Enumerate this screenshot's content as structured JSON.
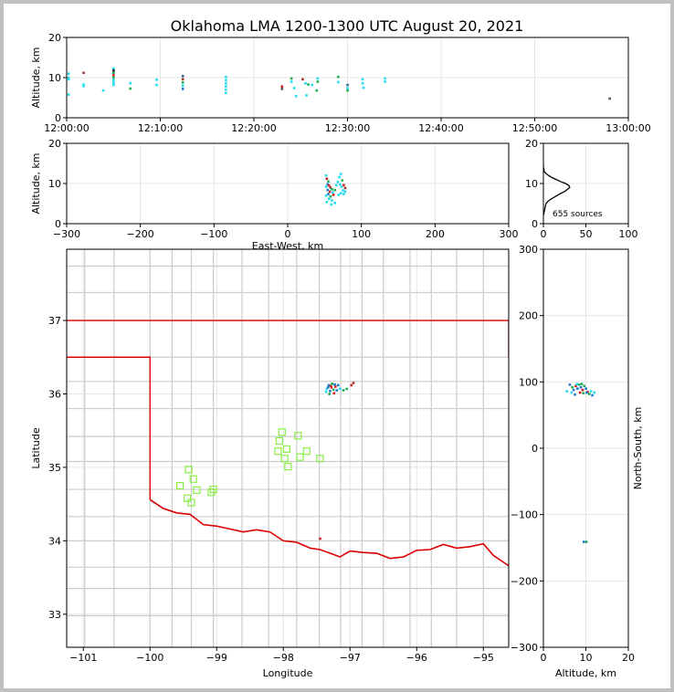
{
  "title": "Oklahoma LMA 1200-1300 UTC August 20, 2021",
  "source_count_label": "655 sources",
  "colors": {
    "map_border": "#cccccc",
    "state_border": "#dd0000",
    "station": "#88ee44",
    "grid": "#e6e6e6"
  },
  "chart_data": [
    {
      "name": "time-height",
      "type": "scatter",
      "xlabel": "",
      "ylabel": "Altitude, km",
      "x_ticks": [
        "12:00:00",
        "12:10:00",
        "12:20:00",
        "12:30:00",
        "12:40:00",
        "12:50:00",
        "13:00:00"
      ],
      "xlim": [
        0,
        60
      ],
      "x_units": "minutes after 12:00 UTC",
      "ylim": [
        0,
        20
      ],
      "y_ticks": [
        0,
        10,
        20
      ],
      "grid": true,
      "points": [
        [
          0.2,
          11.0,
          "#22ddee"
        ],
        [
          0.2,
          10.0,
          "#22ddee"
        ],
        [
          0.2,
          9.6,
          "#22ddee"
        ],
        [
          0.2,
          5.8,
          "#22ddee"
        ],
        [
          1.8,
          11.2,
          "#aa3333"
        ],
        [
          1.8,
          8.3,
          "#22ddee"
        ],
        [
          1.8,
          7.9,
          "#22ddee"
        ],
        [
          3.9,
          6.8,
          "#22ddee"
        ],
        [
          5.0,
          12.3,
          "#22ddee"
        ],
        [
          5.0,
          11.8,
          "#222222"
        ],
        [
          5.0,
          11.2,
          "#22aa55"
        ],
        [
          5.0,
          10.6,
          "#cc2222"
        ],
        [
          5.0,
          10.0,
          "#22aa55"
        ],
        [
          5.0,
          9.4,
          "#22ddee"
        ],
        [
          5.0,
          8.8,
          "#22ddee"
        ],
        [
          5.0,
          8.2,
          "#22ddee"
        ],
        [
          6.8,
          8.6,
          "#22ddee"
        ],
        [
          6.8,
          7.3,
          "#22aa55"
        ],
        [
          9.6,
          9.5,
          "#22ddee"
        ],
        [
          9.6,
          8.2,
          "#22ddee"
        ],
        [
          12.4,
          10.4,
          "#336699"
        ],
        [
          12.4,
          9.6,
          "#aa3333"
        ],
        [
          12.4,
          8.8,
          "#22aa55"
        ],
        [
          12.4,
          8.0,
          "#22ddee"
        ],
        [
          12.4,
          7.2,
          "#2277cc"
        ],
        [
          17.0,
          10.2,
          "#22ddee"
        ],
        [
          17.0,
          9.4,
          "#22ddee"
        ],
        [
          17.0,
          8.6,
          "#22ddee"
        ],
        [
          17.0,
          7.8,
          "#22ddee"
        ],
        [
          17.0,
          7.0,
          "#22ddee"
        ],
        [
          17.0,
          6.2,
          "#22ddee"
        ],
        [
          23.0,
          7.8,
          "#cc2222"
        ],
        [
          23.0,
          7.2,
          "#555555"
        ],
        [
          24.0,
          9.8,
          "#22aa55"
        ],
        [
          24.0,
          9.0,
          "#22ddee"
        ],
        [
          24.3,
          7.4,
          "#22ddee"
        ],
        [
          24.5,
          5.4,
          "#22ddee"
        ],
        [
          25.2,
          9.6,
          "#aa3333"
        ],
        [
          25.5,
          8.6,
          "#22ddee"
        ],
        [
          25.8,
          8.3,
          "#22aa55"
        ],
        [
          25.6,
          5.6,
          "#22ddee"
        ],
        [
          26.2,
          8.2,
          "#22ddee"
        ],
        [
          26.8,
          9.8,
          "#22ddee"
        ],
        [
          26.8,
          9.0,
          "#22aa55"
        ],
        [
          26.7,
          6.8,
          "#22aa55"
        ],
        [
          29.0,
          10.2,
          "#22aa55"
        ],
        [
          29.0,
          8.9,
          "#22ddee"
        ],
        [
          30.0,
          8.2,
          "#336699"
        ],
        [
          30.0,
          7.4,
          "#22ddee"
        ],
        [
          30.0,
          6.8,
          "#22aa55"
        ],
        [
          31.6,
          9.6,
          "#22ddee"
        ],
        [
          31.6,
          8.6,
          "#22ddee"
        ],
        [
          31.7,
          7.5,
          "#22ddee"
        ],
        [
          34.0,
          9.8,
          "#22ddee"
        ],
        [
          34.0,
          9.0,
          "#22ddee"
        ],
        [
          58.0,
          4.8,
          "#555555"
        ]
      ]
    },
    {
      "name": "east-west-height",
      "type": "scatter",
      "xlabel": "East-West, km",
      "ylabel": "Altitude, km",
      "xlim": [
        -300,
        300
      ],
      "x_ticks": [
        -300,
        -200,
        -100,
        0,
        100,
        200,
        300
      ],
      "x_tick_labels": [
        "−300",
        "−200",
        "−100",
        "0",
        "100",
        "200",
        "300"
      ],
      "ylim": [
        0,
        20
      ],
      "y_ticks": [
        0,
        10,
        20
      ],
      "grid": true,
      "points": [
        [
          52,
          12.0,
          "#22ddee"
        ],
        [
          53,
          11.2,
          "#cc2222"
        ],
        [
          55,
          10.5,
          "#22aa55"
        ],
        [
          54,
          9.8,
          "#2277cc"
        ],
        [
          56,
          9.5,
          "#cc2222"
        ],
        [
          52,
          9.2,
          "#22ddee"
        ],
        [
          58,
          9.0,
          "#aa3333"
        ],
        [
          60,
          8.6,
          "#22aa55"
        ],
        [
          54,
          8.4,
          "#2277cc"
        ],
        [
          57,
          8.0,
          "#cc2222"
        ],
        [
          61,
          7.8,
          "#22ddee"
        ],
        [
          55,
          7.4,
          "#2277cc"
        ],
        [
          52,
          7.0,
          "#22ddee"
        ],
        [
          58,
          6.8,
          "#22aa55"
        ],
        [
          62,
          7.2,
          "#cc2222"
        ],
        [
          56,
          6.2,
          "#22ddee"
        ],
        [
          60,
          5.8,
          "#22ddee"
        ],
        [
          64,
          8.4,
          "#22aa55"
        ],
        [
          66,
          9.6,
          "#22ddee"
        ],
        [
          68,
          10.4,
          "#22ddee"
        ],
        [
          70,
          11.6,
          "#22ddee"
        ],
        [
          72,
          12.4,
          "#22ddee"
        ],
        [
          74,
          10.8,
          "#22aa55"
        ],
        [
          71,
          9.8,
          "#22ddee"
        ],
        [
          73,
          9.2,
          "#22ddee"
        ],
        [
          76,
          9.6,
          "#cc2222"
        ],
        [
          78,
          8.9,
          "#aa3333"
        ],
        [
          75,
          8.3,
          "#22ddee"
        ],
        [
          72,
          7.6,
          "#22ddee"
        ],
        [
          69,
          7.2,
          "#22ddee"
        ],
        [
          76,
          7.4,
          "#22ddee"
        ],
        [
          78,
          8.0,
          "#22ddee"
        ],
        [
          53,
          5.4,
          "#22ddee"
        ],
        [
          59,
          4.8,
          "#22ddee"
        ],
        [
          64,
          5.2,
          "#22ddee"
        ]
      ]
    },
    {
      "name": "height-histogram",
      "type": "line",
      "xlim": [
        0,
        100
      ],
      "x_ticks": [
        0,
        50,
        100
      ],
      "ylim": [
        0,
        20
      ],
      "y_ticks": [
        0,
        10,
        20
      ],
      "grid": true,
      "x": [
        0,
        1,
        2,
        3,
        5,
        8,
        12,
        16,
        20,
        25,
        28,
        31,
        30,
        26,
        20,
        15,
        10,
        6,
        3,
        1,
        0,
        0
      ],
      "y": [
        2,
        3,
        4,
        5,
        5.5,
        6,
        6.5,
        7,
        7.5,
        8,
        8.5,
        9,
        9.5,
        10,
        10.5,
        11,
        11.5,
        12,
        12.5,
        13,
        14,
        15
      ]
    },
    {
      "name": "plan-view-map",
      "type": "scatter",
      "xlabel": "Longitude",
      "ylabel": "Latitude",
      "xlim": [
        -101.25,
        -94.62
      ],
      "x_ticks": [
        -101,
        -100,
        -99,
        -98,
        -97,
        -96,
        -95
      ],
      "x_tick_labels": [
        "−101",
        "−100",
        "−99",
        "−98",
        "−97",
        "−96",
        "−95"
      ],
      "ylim": [
        32.55,
        37.97
      ],
      "y_ticks": [
        33,
        34,
        35,
        36,
        37
      ],
      "grid": true,
      "stations": [
        [
          -98.02,
          35.48
        ],
        [
          -98.06,
          35.36
        ],
        [
          -98.08,
          35.22
        ],
        [
          -97.95,
          35.25
        ],
        [
          -97.78,
          35.43
        ],
        [
          -97.65,
          35.22
        ],
        [
          -97.45,
          35.12
        ],
        [
          -97.75,
          35.14
        ],
        [
          -97.98,
          35.12
        ],
        [
          -97.93,
          35.01
        ],
        [
          -99.42,
          34.97
        ],
        [
          -99.35,
          34.84
        ],
        [
          -99.55,
          34.75
        ],
        [
          -99.3,
          34.69
        ],
        [
          -99.05,
          34.7
        ],
        [
          -99.44,
          34.58
        ],
        [
          -99.38,
          34.52
        ],
        [
          -99.08,
          34.66
        ]
      ],
      "points": [
        [
          -97.32,
          36.12,
          "#2277cc"
        ],
        [
          -97.28,
          36.09,
          "#cc2222"
        ],
        [
          -97.25,
          36.06,
          "#22aa55"
        ],
        [
          -97.3,
          36.04,
          "#2277cc"
        ],
        [
          -97.22,
          36.1,
          "#cc2222"
        ],
        [
          -97.35,
          36.07,
          "#22ddee"
        ],
        [
          -97.27,
          36.14,
          "#22aa55"
        ],
        [
          -97.2,
          36.05,
          "#2277cc"
        ],
        [
          -97.24,
          36.01,
          "#cc2222"
        ],
        [
          -97.31,
          36.0,
          "#22aa55"
        ],
        [
          -97.18,
          36.12,
          "#2277cc"
        ],
        [
          -97.15,
          36.07,
          "#22ddee"
        ],
        [
          -97.29,
          36.11,
          "#aa3333"
        ],
        [
          -97.23,
          36.13,
          "#2277cc"
        ],
        [
          -97.1,
          36.05,
          "#22aa55"
        ],
        [
          -97.05,
          36.07,
          "#22aa55"
        ],
        [
          -96.98,
          36.12,
          "#cc2222"
        ],
        [
          -96.95,
          36.15,
          "#aa3333"
        ],
        [
          -97.36,
          36.03,
          "#22ddee"
        ],
        [
          -97.33,
          36.09,
          "#2277cc"
        ],
        [
          -97.45,
          34.03,
          "#cc2222"
        ]
      ]
    },
    {
      "name": "north-south-height",
      "type": "scatter",
      "xlabel": "Altitude, km",
      "ylabel": "North-South, km",
      "xlim": [
        0,
        20
      ],
      "x_ticks": [
        0,
        10,
        20
      ],
      "ylim": [
        -300,
        300
      ],
      "y_ticks": [
        -300,
        -200,
        -100,
        0,
        100,
        200,
        300
      ],
      "y_tick_labels": [
        "−300",
        "−200",
        "−100",
        "0",
        "100",
        "200",
        "300"
      ],
      "grid": true,
      "points": [
        [
          5.5,
          86,
          "#22ddee"
        ],
        [
          6.2,
          96,
          "#2277cc"
        ],
        [
          6.8,
          92,
          "#22aa55"
        ],
        [
          7.1,
          88,
          "#2277cc"
        ],
        [
          7.6,
          94,
          "#cc2222"
        ],
        [
          8.0,
          90,
          "#2277cc"
        ],
        [
          8.4,
          96,
          "#22aa55"
        ],
        [
          8.8,
          92,
          "#2277cc"
        ],
        [
          9.2,
          88,
          "#cc2222"
        ],
        [
          9.6,
          94,
          "#22aa55"
        ],
        [
          10.0,
          90,
          "#2277cc"
        ],
        [
          10.4,
          85,
          "#cc2222"
        ],
        [
          10.8,
          82,
          "#22aa55"
        ],
        [
          11.2,
          86,
          "#22ddee"
        ],
        [
          11.5,
          80,
          "#2277cc"
        ],
        [
          6.6,
          84,
          "#22ddee"
        ],
        [
          7.4,
          81,
          "#2277cc"
        ],
        [
          8.6,
          84,
          "#cc2222"
        ],
        [
          9.4,
          83,
          "#22aa55"
        ],
        [
          10.2,
          84,
          "#2277cc"
        ],
        [
          12.0,
          84,
          "#22ddee"
        ],
        [
          7.9,
          97,
          "#22ddee"
        ],
        [
          9.0,
          97,
          "#22aa55"
        ],
        [
          9.5,
          -141,
          "#2277cc"
        ],
        [
          10.1,
          -141,
          "#22aa55"
        ]
      ]
    }
  ]
}
